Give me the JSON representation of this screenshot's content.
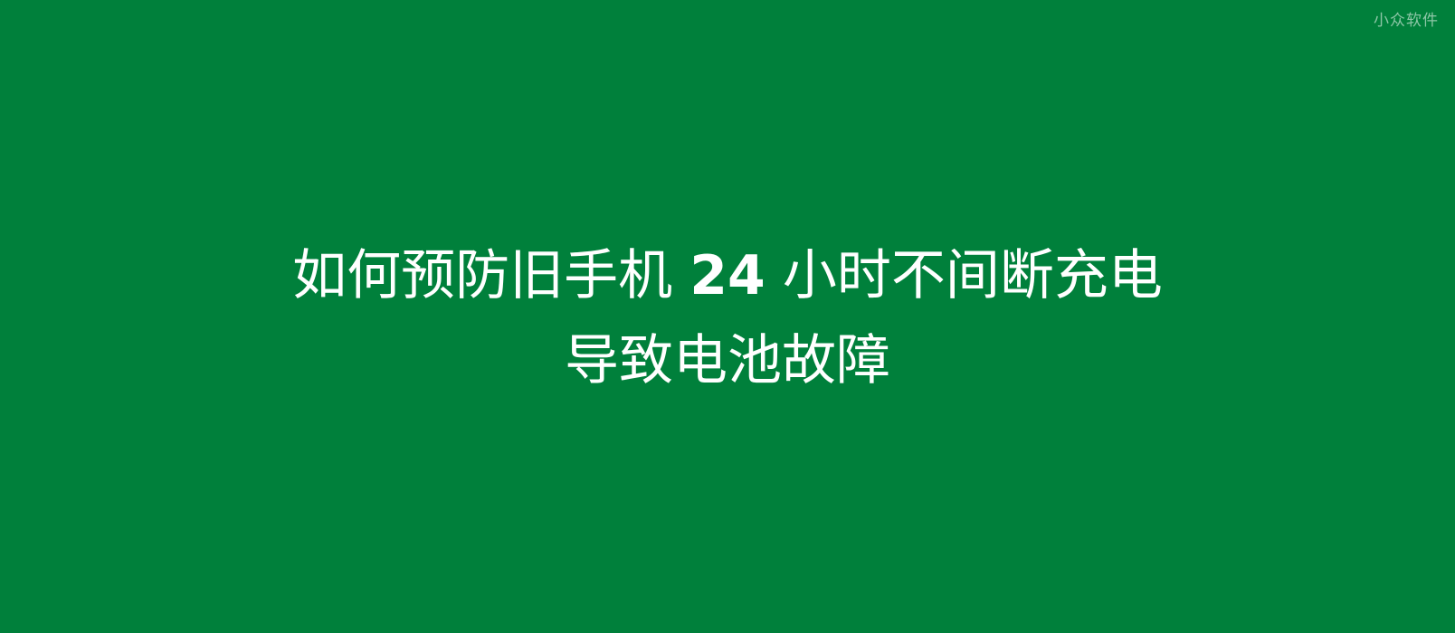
{
  "watermark": "小众软件",
  "headline": {
    "line1_before": "如何预防旧手机 ",
    "line1_number": "24",
    "line1_after": " 小时不间断充电",
    "line2": "导致电池故障"
  },
  "colors": {
    "background": "#00803b",
    "text": "#ffffff"
  }
}
